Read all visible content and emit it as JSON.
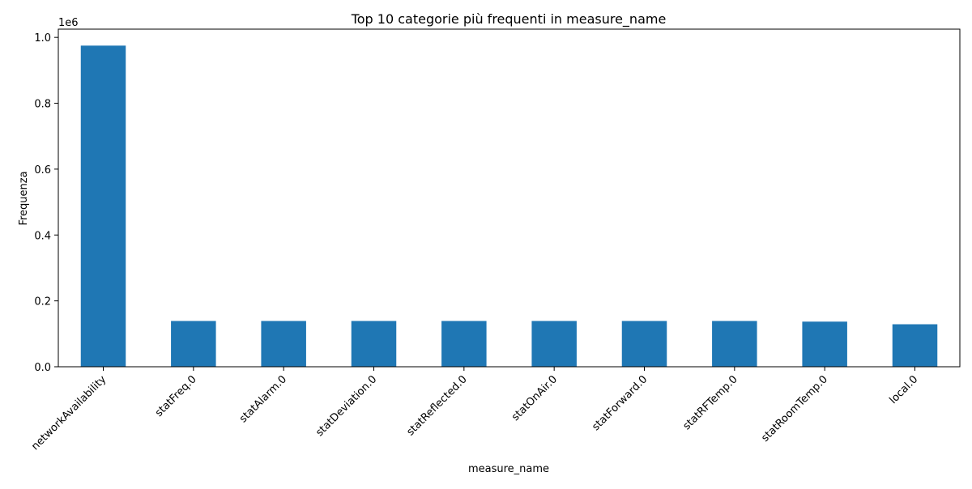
{
  "chart_data": {
    "type": "bar",
    "title": "Top 10 categorie più frequenti in measure_name",
    "xlabel": "measure_name",
    "ylabel": "Frequenza",
    "y_scale_label": "1e6",
    "ylim": [
      0,
      1.025
    ],
    "yticks": [
      0.0,
      0.2,
      0.4,
      0.6,
      0.8,
      1.0
    ],
    "ytick_labels": [
      "0.0",
      "0.2",
      "0.4",
      "0.6",
      "0.8",
      "1.0"
    ],
    "grid": false,
    "legend": "none",
    "categories": [
      "networkAvailability",
      "statFreq.0",
      "statAlarm.0",
      "statDeviation.0",
      "statReflected.0",
      "statOnAir.0",
      "statForward.0",
      "statRFTemp.0",
      "statRoomTemp.0",
      "local.0"
    ],
    "values": [
      0.975,
      0.139,
      0.139,
      0.139,
      0.139,
      0.139,
      0.139,
      0.139,
      0.137,
      0.129
    ],
    "bar_color": "#1f77b4"
  }
}
